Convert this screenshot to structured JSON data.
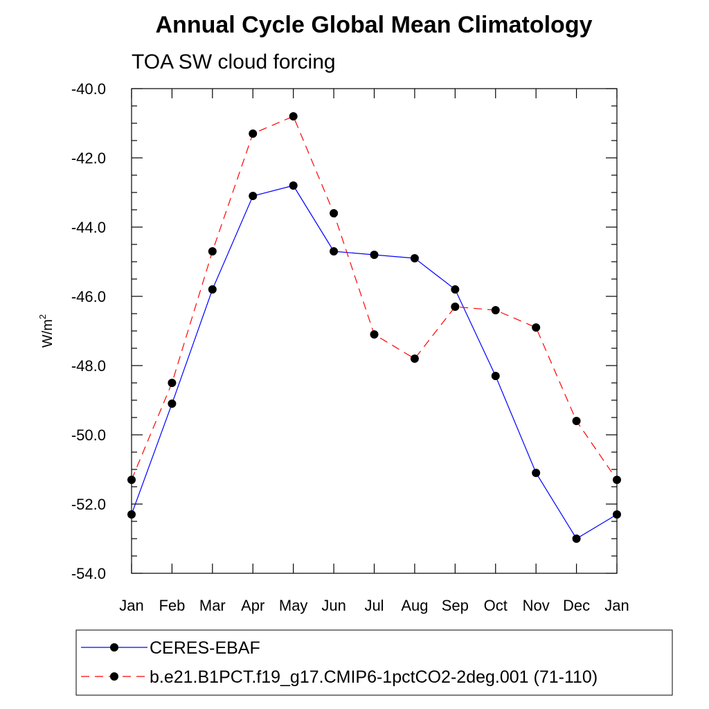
{
  "chart_data": {
    "type": "line",
    "title": "Annual Cycle Global Mean Climatology",
    "subtitle": "TOA SW cloud forcing",
    "ylabel": "W/m",
    "ylabel_sup": "2",
    "xlabel": "",
    "categories": [
      "Jan",
      "Feb",
      "Mar",
      "Apr",
      "May",
      "Jun",
      "Jul",
      "Aug",
      "Sep",
      "Oct",
      "Nov",
      "Dec",
      "Jan"
    ],
    "ylim": [
      -54.0,
      -40.0
    ],
    "yticks": [
      -40.0,
      -42.0,
      -44.0,
      -46.0,
      -48.0,
      -50.0,
      -52.0,
      -54.0
    ],
    "ytick_labels": [
      "-40.0",
      "-42.0",
      "-44.0",
      "-46.0",
      "-48.0",
      "-50.0",
      "-52.0",
      "-54.0"
    ],
    "grid": false,
    "legend_position": "bottom",
    "series": [
      {
        "name": "CERES-EBAF",
        "color": "#0000ff",
        "dash": "solid",
        "values": [
          -52.3,
          -49.1,
          -45.8,
          -43.1,
          -42.8,
          -44.7,
          -44.8,
          -44.9,
          -45.8,
          -48.3,
          -51.1,
          -53.0,
          -52.3
        ]
      },
      {
        "name": "b.e21.B1PCT.f19_g17.CMIP6-1pctCO2-2deg.001 (71-110)",
        "color": "#ff0000",
        "dash": "dashed",
        "values": [
          -51.3,
          -48.5,
          -44.7,
          -41.3,
          -40.8,
          -43.6,
          -47.1,
          -47.8,
          -46.3,
          -46.4,
          -46.9,
          -49.6,
          -51.3
        ]
      }
    ],
    "marker_color": "#000000"
  }
}
